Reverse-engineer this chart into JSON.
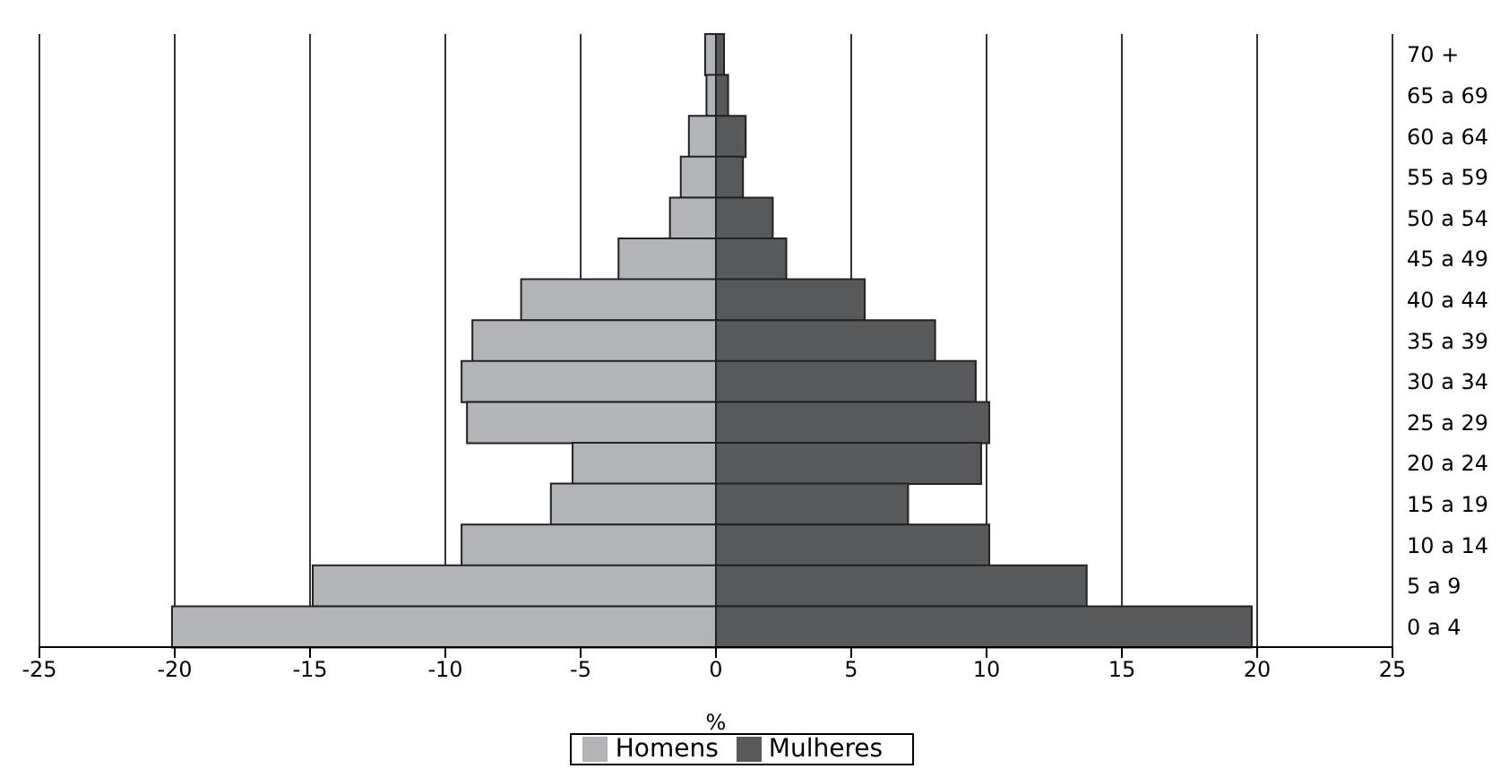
{
  "chart_data": {
    "type": "bar",
    "orientation": "horizontal",
    "stacked": true,
    "xlabel": "%",
    "categories": [
      "70 +",
      "65 a 69",
      "60 a 64",
      "55 a 59",
      "50 a 54",
      "45 a 49",
      "40 a 44",
      "35 a 39",
      "30 a 34",
      "25 a 29",
      "20 a 24",
      "15 a 19",
      "10 a 14",
      "5 a 9",
      "0 a 4"
    ],
    "series": [
      {
        "name": "Homens",
        "color": "#b3b4b8",
        "values": [
          -0.4,
          -0.35,
          -1.0,
          -1.3,
          -1.7,
          -3.6,
          -7.2,
          -9.0,
          -9.4,
          -9.2,
          -5.3,
          -6.1,
          -9.4,
          -14.9,
          -20.1
        ]
      },
      {
        "name": "Mulheres",
        "color": "#58595b",
        "values": [
          0.3,
          0.45,
          1.1,
          1.0,
          2.1,
          2.6,
          5.5,
          8.1,
          9.6,
          10.1,
          9.8,
          7.1,
          10.1,
          13.7,
          19.8
        ]
      }
    ],
    "xlim": [
      -25,
      25
    ],
    "xticks": [
      -25,
      -20,
      -15,
      -10,
      -5,
      0,
      5,
      10,
      15,
      20,
      25
    ],
    "grid": "x",
    "legend": "bottom"
  }
}
